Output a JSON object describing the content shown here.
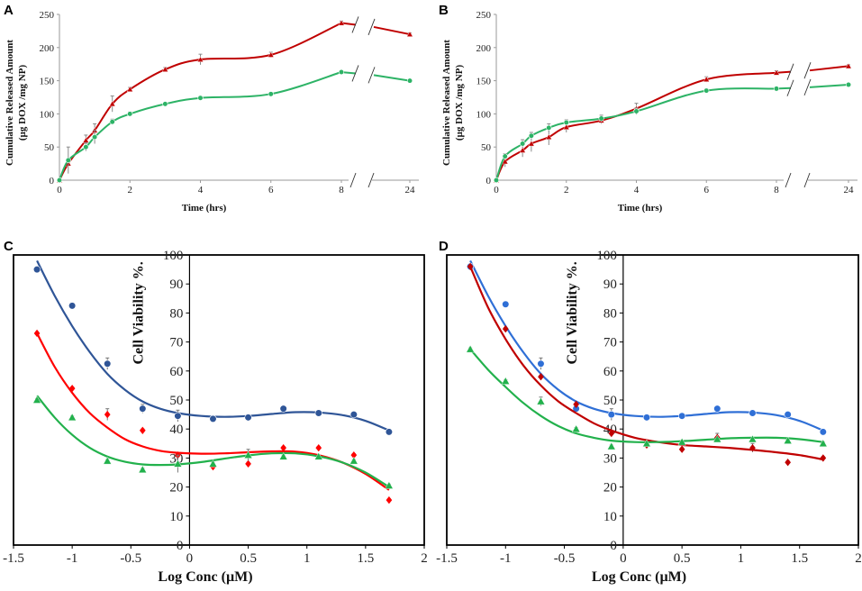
{
  "chart_data": [
    {
      "panel": "A",
      "type": "line",
      "xlabel": "Time (hrs)",
      "ylabel": [
        "Cumulative Released Amount",
        "(µg DOX /mg  NP)"
      ],
      "xticks": [
        "0",
        "2",
        "4",
        "6",
        "8",
        "24"
      ],
      "yticks": [
        "0",
        "50",
        "100",
        "150",
        "200",
        "250"
      ],
      "ylim": [
        0,
        250
      ],
      "axis_break": "between 8 and 24",
      "series": [
        {
          "name": "red",
          "color": "#c00000",
          "marker": "triangle",
          "x": [
            0,
            0.25,
            0.75,
            1,
            1.5,
            2,
            3,
            4,
            6,
            8,
            24
          ],
          "y": [
            0,
            25,
            60,
            75,
            115,
            137,
            167,
            182,
            189,
            237,
            220
          ],
          "err": [
            0,
            3,
            8,
            10,
            12,
            3,
            3,
            8,
            4,
            3,
            2
          ]
        },
        {
          "name": "green",
          "color": "#2db366",
          "marker": "circle",
          "x": [
            0,
            0.25,
            0.75,
            1,
            1.5,
            2,
            3,
            4,
            6,
            8,
            24
          ],
          "y": [
            0,
            30,
            50,
            65,
            88,
            100,
            115,
            124,
            130,
            163,
            150
          ],
          "err": [
            0,
            20,
            6,
            10,
            4,
            3,
            2,
            3,
            2,
            2,
            2
          ]
        }
      ]
    },
    {
      "panel": "B",
      "type": "line",
      "xlabel": "Time (hrs)",
      "ylabel": [
        "Cumulative Released Amount",
        "(µg DOX /mg  NP)"
      ],
      "xticks": [
        "0",
        "2",
        "4",
        "6",
        "8",
        "24"
      ],
      "yticks": [
        "0",
        "50",
        "100",
        "150",
        "200",
        "250"
      ],
      "ylim": [
        0,
        250
      ],
      "axis_break": "between 8 and 24",
      "series": [
        {
          "name": "red",
          "color": "#c00000",
          "marker": "triangle",
          "x": [
            0,
            0.25,
            0.75,
            1,
            1.5,
            2,
            3,
            4,
            6,
            8,
            24
          ],
          "y": [
            0,
            28,
            45,
            55,
            65,
            80,
            90,
            108,
            152,
            162,
            172
          ],
          "err": [
            0,
            8,
            10,
            12,
            12,
            8,
            5,
            8,
            4,
            3,
            2
          ]
        },
        {
          "name": "green",
          "color": "#2db366",
          "marker": "circle",
          "x": [
            0,
            0.25,
            0.75,
            1,
            1.5,
            2,
            3,
            4,
            6,
            8,
            24
          ],
          "y": [
            0,
            36,
            55,
            67,
            79,
            87,
            93,
            104,
            135,
            138,
            144
          ],
          "err": [
            0,
            4,
            6,
            5,
            6,
            4,
            5,
            5,
            3,
            2,
            2
          ]
        }
      ]
    },
    {
      "panel": "C",
      "type": "scatter",
      "xlabel": "Log Conc (µM)",
      "ylabel": "Cell Viability %.",
      "xticks": [
        "-1.5",
        "-1",
        "-0.5",
        "0",
        "0.5",
        "1",
        "1.5",
        "2"
      ],
      "yticks": [
        "0",
        "10",
        "20",
        "30",
        "40",
        "50",
        "60",
        "70",
        "80",
        "90",
        "100"
      ],
      "xlim": [
        -1.5,
        2
      ],
      "ylim": [
        0,
        100
      ],
      "series": [
        {
          "name": "blue",
          "color": "#2f5597",
          "marker": "circle",
          "x": [
            -1.3,
            -1.0,
            -0.7,
            -0.4,
            -0.1,
            0.2,
            0.5,
            0.8,
            1.1,
            1.4,
            1.7
          ],
          "y": [
            95,
            82.5,
            62.5,
            47,
            44.5,
            43.5,
            44,
            47,
            45.5,
            45,
            39
          ],
          "err": [
            1,
            1,
            2,
            1.5,
            2,
            0.5,
            0.5,
            0.5,
            0.5,
            0.5,
            0.5
          ],
          "fit_x": [
            -1.3,
            -1.15,
            -1.0,
            -0.85,
            -0.7,
            -0.55,
            -0.4,
            -0.25,
            -0.1,
            0.1,
            0.3,
            0.5,
            0.7,
            0.9,
            1.1,
            1.3,
            1.5,
            1.7
          ],
          "fit_y": [
            98,
            86,
            75.5,
            66.5,
            59,
            53.5,
            49.5,
            47,
            45.5,
            44.5,
            44.2,
            44.5,
            45.2,
            45.8,
            45.7,
            44.8,
            42.8,
            39.5
          ]
        },
        {
          "name": "red",
          "color": "#ff0000",
          "marker": "diamond",
          "x": [
            -1.3,
            -1.0,
            -0.7,
            -0.4,
            -0.1,
            0.2,
            0.5,
            0.8,
            1.1,
            1.4,
            1.7
          ],
          "y": [
            73,
            54,
            45,
            39.5,
            31,
            27,
            28,
            33.5,
            33.5,
            31,
            15.5
          ],
          "err": [
            0.5,
            0.5,
            2,
            0.5,
            0.5,
            0.5,
            0.5,
            0.5,
            0.5,
            0.5,
            0.5
          ],
          "fit_x": [
            -1.3,
            -1.15,
            -1.0,
            -0.85,
            -0.7,
            -0.55,
            -0.4,
            -0.25,
            -0.1,
            0.1,
            0.3,
            0.5,
            0.7,
            0.9,
            1.1,
            1.3,
            1.5,
            1.7
          ],
          "fit_y": [
            73,
            61.5,
            52.5,
            45.5,
            40.5,
            36.5,
            34,
            32.5,
            31.8,
            31.5,
            31.6,
            32,
            32.3,
            32.2,
            31,
            28.5,
            24.5,
            19
          ]
        },
        {
          "name": "green",
          "color": "#22b14c",
          "marker": "triangle",
          "x": [
            -1.3,
            -1.0,
            -0.7,
            -0.4,
            -0.1,
            0.2,
            0.5,
            0.8,
            1.1,
            1.4,
            1.7
          ],
          "y": [
            50,
            44,
            29,
            26,
            28,
            28,
            31,
            30.5,
            30.5,
            29,
            20.5
          ],
          "err": [
            0.5,
            0.5,
            0.5,
            0.5,
            3,
            0.5,
            2,
            0.5,
            0.5,
            0.5,
            0.5
          ],
          "fit_x": [
            -1.3,
            -1.15,
            -1.0,
            -0.85,
            -0.7,
            -0.55,
            -0.4,
            -0.25,
            -0.1,
            0.1,
            0.3,
            0.5,
            0.7,
            0.9,
            1.1,
            1.3,
            1.5,
            1.7
          ],
          "fit_y": [
            51.5,
            44,
            38,
            33.5,
            30.5,
            28.7,
            27.8,
            27.6,
            27.8,
            28.6,
            29.8,
            30.9,
            31.6,
            31.6,
            30.6,
            28.5,
            25,
            20
          ]
        }
      ]
    },
    {
      "panel": "D",
      "type": "scatter",
      "xlabel": "Log Conc (µM)",
      "ylabel": "Cell Viability %.",
      "xticks": [
        "-1.5",
        "-1",
        "-0.5",
        "0",
        "0.5",
        "1",
        "1.5",
        "2"
      ],
      "yticks": [
        "0",
        "10",
        "20",
        "30",
        "40",
        "50",
        "60",
        "70",
        "80",
        "90",
        "100"
      ],
      "xlim": [
        -1.5,
        2
      ],
      "ylim": [
        0,
        100
      ],
      "series": [
        {
          "name": "blue",
          "color": "#2f6fd6",
          "marker": "circle",
          "x": [
            -1.3,
            -1.0,
            -0.7,
            -0.4,
            -0.1,
            0.2,
            0.5,
            0.8,
            1.1,
            1.4,
            1.7
          ],
          "y": [
            96,
            83,
            62.5,
            47,
            45,
            44,
            44.5,
            47,
            45.5,
            45,
            39
          ],
          "err": [
            1,
            1,
            2,
            1.5,
            2,
            0.5,
            0.5,
            0.5,
            0.5,
            0.5,
            0.5
          ],
          "fit_x": [
            -1.3,
            -1.15,
            -1.0,
            -0.85,
            -0.7,
            -0.55,
            -0.4,
            -0.25,
            -0.1,
            0.1,
            0.3,
            0.5,
            0.7,
            0.9,
            1.1,
            1.3,
            1.5,
            1.7
          ],
          "fit_y": [
            98,
            86,
            75.5,
            66.5,
            59,
            53.5,
            49.5,
            47,
            45.5,
            44.5,
            44.2,
            44.5,
            45.2,
            45.8,
            45.7,
            44.8,
            42.8,
            39.5
          ]
        },
        {
          "name": "red",
          "color": "#c00000",
          "marker": "diamond",
          "x": [
            -1.3,
            -1.0,
            -0.7,
            -0.4,
            -0.1,
            0.2,
            0.5,
            0.8,
            1.1,
            1.4,
            1.7
          ],
          "y": [
            96,
            74.5,
            58,
            48.5,
            38.5,
            34.5,
            33,
            37,
            33.5,
            28.5,
            30
          ],
          "err": [
            0.5,
            0.5,
            0.5,
            0.5,
            0.5,
            0.5,
            0.5,
            1.5,
            1.5,
            0.5,
            0.5
          ],
          "fit_x": [
            -1.3,
            -1.15,
            -1.0,
            -0.85,
            -0.7,
            -0.55,
            -0.4,
            -0.25,
            -0.1,
            0.1,
            0.3,
            0.5,
            0.7,
            0.9,
            1.1,
            1.3,
            1.5,
            1.7
          ],
          "fit_y": [
            96,
            82,
            71,
            62,
            55,
            49.5,
            45.5,
            42,
            39.5,
            37,
            35.5,
            34.5,
            34,
            33.5,
            32.8,
            32,
            31,
            29.5
          ]
        },
        {
          "name": "green",
          "color": "#22b14c",
          "marker": "triangle",
          "x": [
            -1.3,
            -1.0,
            -0.7,
            -0.4,
            -0.1,
            0.2,
            0.5,
            0.8,
            1.1,
            1.4,
            1.7
          ],
          "y": [
            67.5,
            56.5,
            49.5,
            40,
            34,
            35,
            35.5,
            36.5,
            36.5,
            36,
            35
          ],
          "err": [
            0.5,
            0.5,
            1.5,
            0.5,
            0.5,
            0.5,
            0.5,
            0.5,
            0.5,
            0.5,
            0.5
          ],
          "fit_x": [
            -1.3,
            -1.15,
            -1.0,
            -0.85,
            -0.7,
            -0.55,
            -0.4,
            -0.25,
            -0.1,
            0.1,
            0.3,
            0.5,
            0.7,
            0.9,
            1.1,
            1.3,
            1.5,
            1.7
          ],
          "fit_y": [
            67.5,
            60.5,
            54.5,
            49,
            44.5,
            41,
            38.5,
            37,
            36,
            35.5,
            35.5,
            35.8,
            36.3,
            36.8,
            37,
            37,
            36.5,
            35.5
          ]
        }
      ]
    }
  ]
}
